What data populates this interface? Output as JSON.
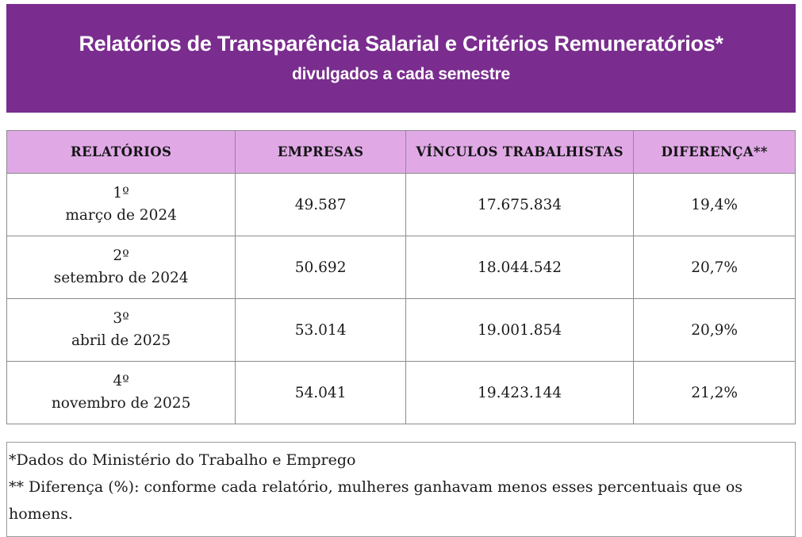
{
  "colors": {
    "banner_bg": "#7A2D8E",
    "banner_text": "#FFFFFF",
    "table_header_bg": "#E0A9E6",
    "table_border": "#8C8C8C",
    "text": "#1B1B1B"
  },
  "chart_data": {
    "type": "table",
    "title": "Relatórios de Transparência Salarial e Critérios Remuneratórios*",
    "subtitle": "divulgados a cada semestre",
    "columns": [
      "RELATÓRIOS",
      "EMPRESAS",
      "VÍNCULOS TRABALHISTAS",
      "DIFERENÇA**"
    ],
    "rows": [
      {
        "ordinal": "1º",
        "date": "março de 2024",
        "empresas": "49.587",
        "vinculos": "17.675.834",
        "diferenca": "19,4%"
      },
      {
        "ordinal": "2º",
        "date": "setembro de 2024",
        "empresas": "50.692",
        "vinculos": "18.044.542",
        "diferenca": "20,7%"
      },
      {
        "ordinal": "3º",
        "date": "abril de 2025",
        "empresas": "53.014",
        "vinculos": "19.001.854",
        "diferenca": "20,9%"
      },
      {
        "ordinal": "4º",
        "date": "novembro de 2025",
        "empresas": "54.041",
        "vinculos": "19.423.144",
        "diferenca": "21,2%"
      }
    ],
    "footnotes": [
      "*Dados do Ministério do Trabalho e Emprego",
      "** Diferença (%): conforme cada relatório, mulheres ganhavam menos esses percentuais que os homens."
    ]
  }
}
